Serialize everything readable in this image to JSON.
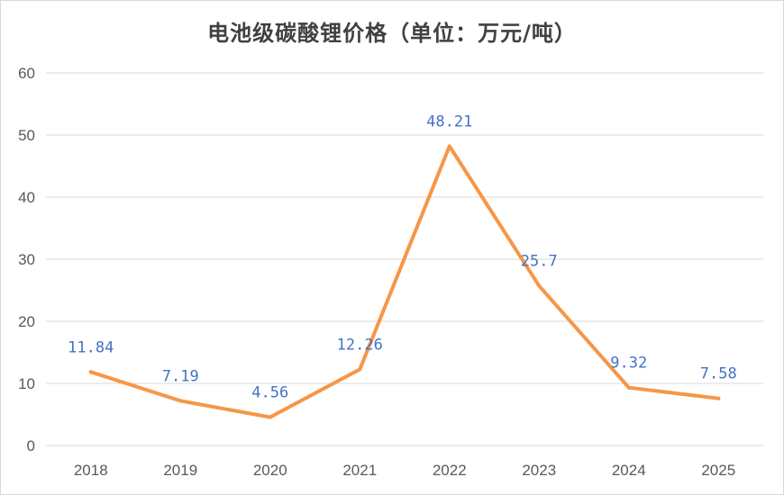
{
  "chart_data": {
    "type": "line",
    "title": "电池级碳酸锂价格（单位：万元/吨）",
    "xlabel": "",
    "ylabel": "",
    "categories": [
      "2018",
      "2019",
      "2020",
      "2021",
      "2022",
      "2023",
      "2024",
      "2025"
    ],
    "series": [
      {
        "values": [
          11.84,
          7.19,
          4.56,
          12.26,
          48.21,
          25.7,
          9.32,
          7.58
        ],
        "data_labels": [
          "11.84",
          "7.19",
          "4.56",
          "12.26",
          "48.21",
          "25.7",
          "9.32",
          "7.58"
        ],
        "color": "#f79646"
      }
    ],
    "ylim": [
      0,
      60
    ],
    "yticks": [
      "0",
      "10",
      "20",
      "30",
      "40",
      "50",
      "60"
    ],
    "grid": true,
    "legend": "none",
    "label_color": "#4472c4",
    "gridline_color": "#d9d9d9"
  }
}
